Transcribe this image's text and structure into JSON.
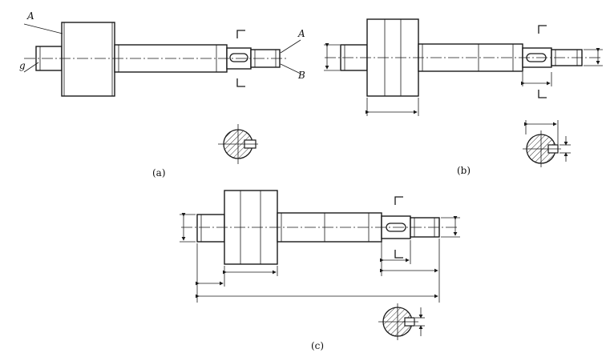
{
  "labels": {
    "a_caption": "(a)",
    "b_caption": "(b)",
    "c_caption": "(c)",
    "a_letter_top": "A",
    "a_letter_right": "A",
    "b_letter_right": "B",
    "g_letter_left": "g"
  }
}
